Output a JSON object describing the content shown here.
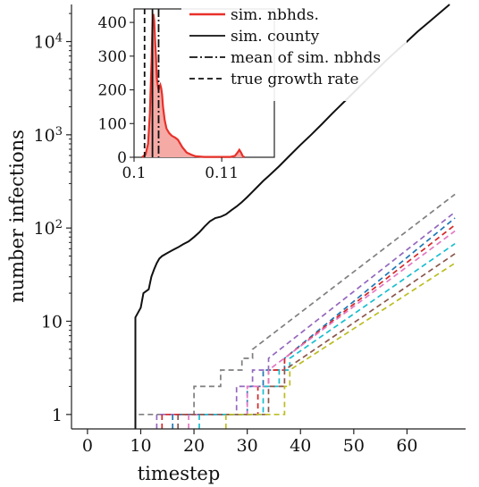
{
  "chart_data": [
    {
      "type": "line",
      "panel": "main",
      "xlabel": "timestep",
      "ylabel": "number infections",
      "y_scale": "log",
      "xlim": [
        -3,
        71
      ],
      "ylim": [
        0.7,
        25000
      ],
      "x_ticks": [
        0,
        10,
        20,
        30,
        40,
        50,
        60
      ],
      "x_tick_labels": [
        "0",
        "10",
        "20",
        "30",
        "40",
        "50",
        "60"
      ],
      "y_ticks": [
        1,
        10,
        100,
        1000,
        10000
      ],
      "y_tick_labels": [
        {
          "base": "1",
          "exp": ""
        },
        {
          "base": "10",
          "exp": ""
        },
        {
          "base": "10",
          "exp": "2"
        },
        {
          "base": "10",
          "exp": "3"
        },
        {
          "base": "10",
          "exp": "4"
        }
      ],
      "series": [
        {
          "name": "sim. county",
          "style": "solid",
          "color": "#111111",
          "points": [
            [
              9,
              0.7
            ],
            [
              9,
              11
            ],
            [
              10,
              14
            ],
            [
              10.5,
              20
            ],
            [
              11,
              21
            ],
            [
              11.5,
              22
            ],
            [
              12,
              30
            ],
            [
              12.5,
              36
            ],
            [
              13,
              42
            ],
            [
              13.5,
              47
            ],
            [
              14,
              50
            ],
            [
              15,
              54
            ],
            [
              16,
              58
            ],
            [
              17,
              62
            ],
            [
              18,
              67
            ],
            [
              19,
              72
            ],
            [
              20,
              80
            ],
            [
              21,
              90
            ],
            [
              22,
              104
            ],
            [
              23,
              118
            ],
            [
              24,
              128
            ],
            [
              25,
              132
            ],
            [
              26,
              140
            ],
            [
              27,
              155
            ],
            [
              28,
              170
            ],
            [
              29,
              190
            ],
            [
              30,
              215
            ],
            [
              31,
              245
            ],
            [
              32,
              280
            ],
            [
              33,
              320
            ],
            [
              34,
              360
            ],
            [
              36,
              460
            ],
            [
              38,
              600
            ],
            [
              40,
              780
            ],
            [
              42,
              1000
            ],
            [
              44,
              1300
            ],
            [
              46,
              1700
            ],
            [
              48,
              2200
            ],
            [
              50,
              2850
            ],
            [
              52,
              3700
            ],
            [
              54,
              4800
            ],
            [
              56,
              6200
            ],
            [
              58,
              7900
            ],
            [
              60,
              10000
            ],
            [
              62,
              12800
            ],
            [
              64,
              16000
            ],
            [
              66,
              20000
            ],
            [
              68,
              25000
            ]
          ]
        },
        {
          "style": "dashed",
          "color": "#7f7f7f",
          "start": 9,
          "jump_x": 20,
          "jump_to": 2,
          "steps": [
            [
              25,
              3
            ],
            [
              29,
              4
            ],
            [
              31,
              5
            ]
          ],
          "end_x": 69,
          "end_y": 230
        },
        {
          "style": "dashed",
          "color": "#9467bd",
          "start": 13,
          "jump_x": 28,
          "jump_to": 2,
          "steps": [
            [
              31,
              3
            ],
            [
              34,
              4
            ]
          ],
          "end_x": 69,
          "end_y": 148
        },
        {
          "style": "dashed",
          "color": "#1f77b4",
          "start": 16,
          "jump_x": 30,
          "jump_to": 2,
          "steps": [
            [
              33,
              3
            ],
            [
              37,
              4
            ]
          ],
          "end_x": 69,
          "end_y": 128
        },
        {
          "style": "dashed",
          "color": "#d62728",
          "start": 14,
          "jump_x": 32,
          "jump_to": 2,
          "steps": [
            [
              34,
              3
            ],
            [
              37,
              4
            ]
          ],
          "end_x": 69,
          "end_y": 108
        },
        {
          "style": "dashed",
          "color": "#e377c2",
          "start": 19,
          "jump_x": 30,
          "jump_to": 2,
          "steps": [
            [
              34,
              3
            ]
          ],
          "end_x": 69,
          "end_y": 93
        },
        {
          "style": "dashed",
          "color": "#17becf",
          "start": 21,
          "jump_x": 33,
          "jump_to": 2,
          "steps": [
            [
              36,
              3
            ],
            [
              38,
              4
            ]
          ],
          "end_x": 69,
          "end_y": 68
        },
        {
          "style": "dashed",
          "color": "#8c564b",
          "start": 17,
          "jump_x": 34,
          "jump_to": 2,
          "steps": [
            [
              37,
              3
            ]
          ],
          "end_x": 69,
          "end_y": 53
        },
        {
          "style": "dashed",
          "color": "#bcbd22",
          "start": 26,
          "jump_x": 37,
          "jump_to": 2,
          "steps": [
            [
              38,
              3
            ]
          ],
          "end_x": 69,
          "end_y": 42
        }
      ]
    },
    {
      "type": "area",
      "panel": "inset",
      "xlim": [
        0.1,
        0.116
      ],
      "ylim": [
        0,
        440
      ],
      "x_ticks": [
        0.1,
        0.11
      ],
      "x_tick_labels": [
        "0.1",
        "0.11"
      ],
      "y_ticks": [
        0,
        100,
        200,
        300,
        400
      ],
      "y_tick_labels": [
        "0",
        "100",
        "200",
        "300",
        "400"
      ],
      "density": {
        "name": "sim. nbhds.",
        "color": "#e8312a",
        "fill": "#f5aaa6",
        "x": [
          0.1009,
          0.1013,
          0.1016,
          0.1018,
          0.102,
          0.1021,
          0.1022,
          0.1023,
          0.1024,
          0.1025,
          0.1026,
          0.1027,
          0.1028,
          0.1029,
          0.103,
          0.1031,
          0.1032,
          0.1033,
          0.1035,
          0.1037,
          0.104,
          0.1043,
          0.1047,
          0.105,
          0.1055,
          0.106,
          0.1065,
          0.107,
          0.108,
          0.109,
          0.11,
          0.111,
          0.1115,
          0.1118,
          0.112,
          0.1122,
          0.1124,
          0.1126
        ],
        "y": [
          0,
          8,
          40,
          130,
          285,
          390,
          425,
          405,
          350,
          300,
          235,
          215,
          200,
          210,
          215,
          205,
          185,
          150,
          110,
          85,
          72,
          64,
          58,
          52,
          30,
          14,
          8,
          3,
          1,
          1,
          1,
          1,
          4,
          14,
          22,
          14,
          3,
          0
        ]
      },
      "vlines": [
        {
          "name": "sim. county",
          "style": "solid",
          "color": "#111111",
          "x": 0.1021
        },
        {
          "name": "mean of sim. nbhds",
          "style": "dashdot",
          "color": "#111111",
          "x": 0.1028
        },
        {
          "name": "true growth rate",
          "style": "dashed",
          "color": "#111111",
          "x": 0.1012
        }
      ],
      "legend": {
        "placement": "top-right",
        "entries": [
          {
            "label": "sim. nbhds.",
            "style": "solid",
            "color": "#e8312a"
          },
          {
            "label": "sim. county",
            "style": "solid",
            "color": "#111111"
          },
          {
            "label": "mean of sim. nbhds",
            "style": "dashdot",
            "color": "#111111"
          },
          {
            "label": "true growth rate",
            "style": "dashed",
            "color": "#111111"
          }
        ]
      }
    }
  ]
}
